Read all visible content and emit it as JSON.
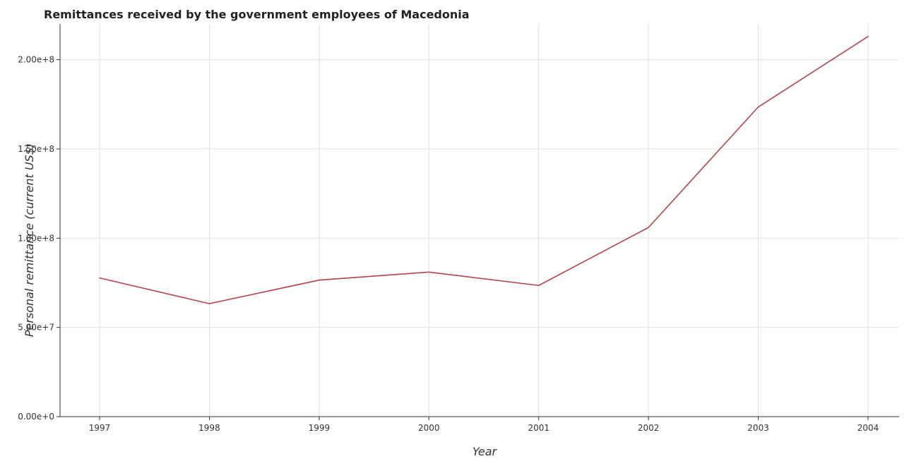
{
  "chart_data": {
    "type": "line",
    "title": "Remittances received by the government employees of Macedonia",
    "xlabel": "Year",
    "ylabel": "Personal remittance (current US$)",
    "categories": [
      "1997",
      "1998",
      "1999",
      "2000",
      "2001",
      "2002",
      "2003",
      "2004"
    ],
    "series": [
      {
        "values": [
          77700000,
          63300000,
          76500000,
          81000000,
          73500000,
          106000000,
          173500000,
          213000000
        ]
      }
    ],
    "ylim": [
      0,
      220000000
    ],
    "yticks": [
      0,
      50000000,
      100000000,
      150000000,
      200000000
    ],
    "ytick_labels": [
      "0.00e+0",
      "5.00e+7",
      "1.00e+8",
      "1.50e+8",
      "2.00e+8"
    ],
    "grid": true,
    "colors": {
      "line": "#b5434a"
    }
  }
}
